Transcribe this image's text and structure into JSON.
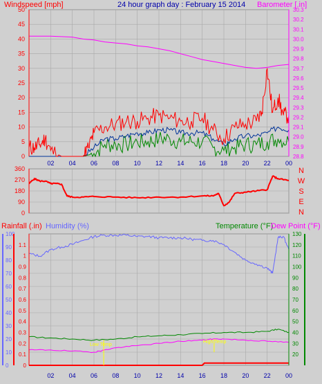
{
  "top": {
    "title": "24 hour graph day : February 15 2014",
    "left_label": "Windspeed [mph]",
    "right_label": "Barometer [.in]"
  },
  "middle": {
    "compass": [
      "N",
      "W",
      "S",
      "E",
      "N"
    ]
  },
  "bottom": {
    "labels": {
      "rainfall": "Rainfall (.in)",
      "humidity": "Humidity (%)",
      "temperature": "Temperature (°F)",
      "dewpoint": "Dew Point (°F)"
    },
    "annotations": [
      "Low Temp",
      "High Temp"
    ]
  },
  "colors": {
    "bg": "#d0d0d0",
    "wind": "#ff0000",
    "gust": "#ff0000",
    "avg": "#003399",
    "green": "#008800",
    "baro": "#ff00ff",
    "humidity": "#6666ff",
    "temp": "#008800",
    "dew": "#ff00ff",
    "rain": "#ff0000",
    "annot": "#ffff00"
  },
  "chart_data": [
    {
      "type": "line",
      "name": "wind-barometer",
      "x_ticks": [
        "02",
        "04",
        "06",
        "08",
        "10",
        "12",
        "14",
        "16",
        "18",
        "20",
        "22",
        "00"
      ],
      "ylim_left": [
        0,
        50
      ],
      "yticks_left": [
        0,
        5,
        10,
        15,
        20,
        25,
        30,
        35,
        40,
        45,
        50
      ],
      "ylim_right": [
        28.8,
        30.3
      ],
      "yticks_right": [
        28.8,
        28.9,
        29.0,
        29.1,
        29.2,
        29.3,
        29.4,
        29.5,
        29.6,
        29.7,
        29.8,
        29.9,
        30.0,
        30.1,
        30.2,
        30.3
      ],
      "series": [
        {
          "role": "barometer",
          "x": [
            0,
            2,
            4,
            5,
            6,
            7,
            8,
            9,
            10,
            11,
            12,
            13,
            14,
            15,
            16,
            17,
            18,
            19,
            20,
            21,
            22,
            23,
            24
          ],
          "y": [
            30.03,
            30.03,
            30.02,
            30.0,
            29.99,
            29.97,
            29.96,
            29.95,
            29.93,
            29.92,
            29.9,
            29.88,
            29.85,
            29.82,
            29.79,
            29.77,
            29.75,
            29.73,
            29.71,
            29.7,
            29.71,
            29.73,
            29.74
          ]
        },
        {
          "role": "gust",
          "x": [
            0,
            0.5,
            1,
            1.5,
            2,
            3,
            4,
            5,
            5.5,
            6,
            7,
            8,
            9,
            10,
            11,
            12,
            13,
            14,
            15,
            16,
            17,
            18,
            19,
            20,
            21,
            21.5,
            22,
            22.5,
            23,
            23.5,
            24
          ],
          "y": [
            3,
            3,
            4,
            6,
            2,
            0,
            0,
            0,
            3,
            8,
            10,
            11,
            12,
            12,
            13,
            14,
            13,
            12,
            12,
            13,
            9,
            6,
            10,
            11,
            12,
            15,
            30,
            15,
            20,
            14,
            14
          ]
        },
        {
          "role": "average",
          "x": [
            0,
            2,
            4,
            5,
            6,
            7,
            8,
            9,
            10,
            11,
            12,
            13,
            14,
            15,
            16,
            17,
            18,
            19,
            20,
            21,
            22,
            23,
            24
          ],
          "y": [
            0,
            0,
            0,
            0,
            3,
            6,
            6,
            7,
            8,
            8,
            9,
            9,
            8,
            8,
            8,
            6,
            4,
            6,
            7,
            7,
            8,
            10,
            9
          ]
        },
        {
          "role": "speed",
          "x": [
            0,
            2,
            4,
            5,
            6,
            7,
            8,
            9,
            10,
            11,
            12,
            13,
            14,
            15,
            16,
            17,
            18,
            19,
            20,
            21,
            22,
            23,
            24
          ],
          "y": [
            0,
            0,
            0,
            0,
            1,
            4,
            4,
            4,
            5,
            5,
            6,
            6,
            5,
            5,
            5,
            3,
            2,
            3,
            4,
            4,
            5,
            6,
            5
          ]
        }
      ]
    },
    {
      "type": "line",
      "name": "wind-direction",
      "ylim": [
        0,
        360
      ],
      "yticks": [
        0,
        90,
        180,
        270,
        360
      ],
      "series": [
        {
          "role": "direction",
          "x": [
            0,
            0.5,
            1,
            1.5,
            2,
            2.5,
            3,
            3.5,
            4,
            5,
            6,
            8,
            10,
            12,
            14,
            16,
            17,
            17.5,
            18,
            18.5,
            19,
            20,
            21,
            22,
            22.5,
            23,
            24
          ],
          "y": [
            240,
            280,
            260,
            260,
            240,
            240,
            235,
            140,
            130,
            130,
            135,
            130,
            125,
            130,
            130,
            140,
            140,
            160,
            60,
            90,
            160,
            170,
            180,
            190,
            300,
            280,
            265
          ]
        }
      ]
    },
    {
      "type": "line",
      "name": "rain-humidity-temperature",
      "ylim_left_rain": [
        0,
        1.2
      ],
      "yticks_left_rain": [
        0,
        0.1,
        0.2,
        0.3,
        0.4,
        0.5,
        0.6,
        0.7,
        0.8,
        0.9,
        1.0,
        1.1
      ],
      "ylim_left_humidity": [
        0,
        100
      ],
      "yticks_left_humidity": [
        0,
        10,
        20,
        30,
        40,
        50,
        60,
        70,
        80,
        90,
        100
      ],
      "ylim_right_temp": [
        10,
        130
      ],
      "yticks_right_temp": [
        20,
        30,
        40,
        50,
        60,
        70,
        80,
        90,
        100,
        110,
        120,
        130
      ],
      "series": [
        {
          "role": "humidity",
          "x": [
            0,
            1,
            2,
            3,
            4,
            5,
            6,
            7,
            8,
            9,
            10,
            11,
            12,
            13,
            14,
            15,
            16,
            17,
            18,
            19,
            20,
            21,
            22,
            22.5,
            23,
            23.5,
            24
          ],
          "y": [
            85,
            83,
            88,
            90,
            92,
            95,
            98,
            99,
            99,
            99,
            98,
            98,
            97,
            97,
            97,
            96,
            95,
            95,
            92,
            86,
            80,
            77,
            74,
            70,
            97,
            98,
            88
          ]
        },
        {
          "role": "temperature",
          "x": [
            0,
            2,
            4,
            6,
            8,
            10,
            12,
            14,
            16,
            18,
            20,
            22,
            23,
            24
          ],
          "y": [
            36,
            35,
            34,
            33,
            34,
            36,
            37,
            38,
            39,
            40,
            40,
            41,
            43,
            40
          ]
        },
        {
          "role": "dewpoint",
          "x": [
            0,
            2,
            4,
            6,
            6.5,
            7,
            8,
            10,
            12,
            14,
            16,
            17,
            18,
            20,
            22,
            24
          ],
          "y": [
            24,
            24,
            23,
            22,
            23,
            24,
            26,
            28,
            30,
            32,
            33,
            34,
            34,
            33,
            32,
            31
          ]
        },
        {
          "role": "rainfall",
          "x": [
            0,
            16,
            16.2,
            23.5,
            24
          ],
          "y": [
            0,
            0,
            0.02,
            0.02,
            0.02
          ]
        }
      ]
    }
  ]
}
